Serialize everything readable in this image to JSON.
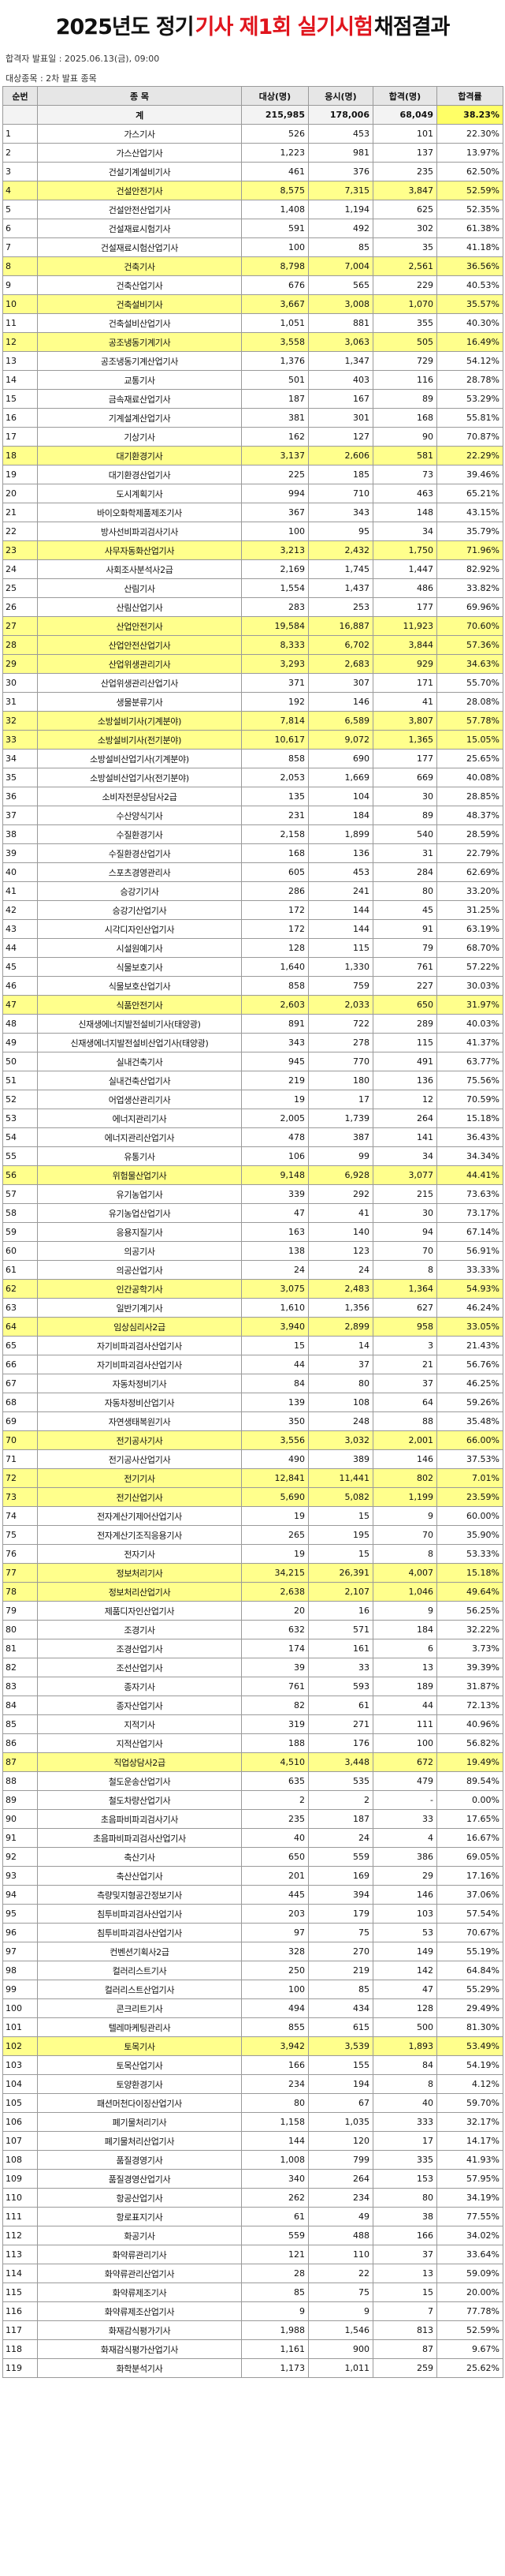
{
  "title": {
    "pre": "2025년도 정기",
    "highlight": "기사 제1회 실기시험",
    "post": "채점결과"
  },
  "meta": {
    "announce": "합격자 발표일 : 2025.06.13(금), 09:00",
    "target": "대상종목 : 2차 발표 종목"
  },
  "colors": {
    "highlight_row": "#ffff8c",
    "title_red": "#e0151d",
    "header_bg": "#e6e6e6"
  },
  "headers": [
    "순번",
    "종 목",
    "대상(명)",
    "응시(명)",
    "합격(명)",
    "합격률"
  ],
  "total": {
    "no": "",
    "name": "계",
    "target": "215,985",
    "applied": "178,006",
    "passed": "68,049",
    "rate": "38.23%"
  },
  "rows": [
    [
      "1",
      "가스기사",
      "526",
      "453",
      "101",
      "22.30%",
      0
    ],
    [
      "2",
      "가스산업기사",
      "1,223",
      "981",
      "137",
      "13.97%",
      0
    ],
    [
      "3",
      "건설기계설비기사",
      "461",
      "376",
      "235",
      "62.50%",
      0
    ],
    [
      "4",
      "건설안전기사",
      "8,575",
      "7,315",
      "3,847",
      "52.59%",
      1
    ],
    [
      "5",
      "건설안전산업기사",
      "1,408",
      "1,194",
      "625",
      "52.35%",
      0
    ],
    [
      "6",
      "건설재료시험기사",
      "591",
      "492",
      "302",
      "61.38%",
      0
    ],
    [
      "7",
      "건설재료시험산업기사",
      "100",
      "85",
      "35",
      "41.18%",
      0
    ],
    [
      "8",
      "건축기사",
      "8,798",
      "7,004",
      "2,561",
      "36.56%",
      1
    ],
    [
      "9",
      "건축산업기사",
      "676",
      "565",
      "229",
      "40.53%",
      0
    ],
    [
      "10",
      "건축설비기사",
      "3,667",
      "3,008",
      "1,070",
      "35.57%",
      1
    ],
    [
      "11",
      "건축설비산업기사",
      "1,051",
      "881",
      "355",
      "40.30%",
      0
    ],
    [
      "12",
      "공조냉동기계기사",
      "3,558",
      "3,063",
      "505",
      "16.49%",
      1
    ],
    [
      "13",
      "공조냉동기계산업기사",
      "1,376",
      "1,347",
      "729",
      "54.12%",
      0
    ],
    [
      "14",
      "교통기사",
      "501",
      "403",
      "116",
      "28.78%",
      0
    ],
    [
      "15",
      "금속재료산업기사",
      "187",
      "167",
      "89",
      "53.29%",
      0
    ],
    [
      "16",
      "기계설계산업기사",
      "381",
      "301",
      "168",
      "55.81%",
      0
    ],
    [
      "17",
      "기상기사",
      "162",
      "127",
      "90",
      "70.87%",
      0
    ],
    [
      "18",
      "대기환경기사",
      "3,137",
      "2,606",
      "581",
      "22.29%",
      1
    ],
    [
      "19",
      "대기환경산업기사",
      "225",
      "185",
      "73",
      "39.46%",
      0
    ],
    [
      "20",
      "도시계획기사",
      "994",
      "710",
      "463",
      "65.21%",
      0
    ],
    [
      "21",
      "바이오화학제품제조기사",
      "367",
      "343",
      "148",
      "43.15%",
      0
    ],
    [
      "22",
      "방사선비파괴검사기사",
      "100",
      "95",
      "34",
      "35.79%",
      0
    ],
    [
      "23",
      "사무자동화산업기사",
      "3,213",
      "2,432",
      "1,750",
      "71.96%",
      1
    ],
    [
      "24",
      "사회조사분석사2급",
      "2,169",
      "1,745",
      "1,447",
      "82.92%",
      0
    ],
    [
      "25",
      "산림기사",
      "1,554",
      "1,437",
      "486",
      "33.82%",
      0
    ],
    [
      "26",
      "산림산업기사",
      "283",
      "253",
      "177",
      "69.96%",
      0
    ],
    [
      "27",
      "산업안전기사",
      "19,584",
      "16,887",
      "11,923",
      "70.60%",
      1
    ],
    [
      "28",
      "산업안전산업기사",
      "8,333",
      "6,702",
      "3,844",
      "57.36%",
      1
    ],
    [
      "29",
      "산업위생관리기사",
      "3,293",
      "2,683",
      "929",
      "34.63%",
      1
    ],
    [
      "30",
      "산업위생관리산업기사",
      "371",
      "307",
      "171",
      "55.70%",
      0
    ],
    [
      "31",
      "생물분류기사",
      "192",
      "146",
      "41",
      "28.08%",
      0
    ],
    [
      "32",
      "소방설비기사(기계분야)",
      "7,814",
      "6,589",
      "3,807",
      "57.78%",
      1
    ],
    [
      "33",
      "소방설비기사(전기분야)",
      "10,617",
      "9,072",
      "1,365",
      "15.05%",
      1
    ],
    [
      "34",
      "소방설비산업기사(기계분야)",
      "858",
      "690",
      "177",
      "25.65%",
      0
    ],
    [
      "35",
      "소방설비산업기사(전기분야)",
      "2,053",
      "1,669",
      "669",
      "40.08%",
      0
    ],
    [
      "36",
      "소비자전문상담사2급",
      "135",
      "104",
      "30",
      "28.85%",
      0
    ],
    [
      "37",
      "수산양식기사",
      "231",
      "184",
      "89",
      "48.37%",
      0
    ],
    [
      "38",
      "수질환경기사",
      "2,158",
      "1,899",
      "540",
      "28.59%",
      0
    ],
    [
      "39",
      "수질환경산업기사",
      "168",
      "136",
      "31",
      "22.79%",
      0
    ],
    [
      "40",
      "스포츠경영관리사",
      "605",
      "453",
      "284",
      "62.69%",
      0
    ],
    [
      "41",
      "승강기기사",
      "286",
      "241",
      "80",
      "33.20%",
      0
    ],
    [
      "42",
      "승강기산업기사",
      "172",
      "144",
      "45",
      "31.25%",
      0
    ],
    [
      "43",
      "시각디자인산업기사",
      "172",
      "144",
      "91",
      "63.19%",
      0
    ],
    [
      "44",
      "시설원예기사",
      "128",
      "115",
      "79",
      "68.70%",
      0
    ],
    [
      "45",
      "식물보호기사",
      "1,640",
      "1,330",
      "761",
      "57.22%",
      0
    ],
    [
      "46",
      "식물보호산업기사",
      "858",
      "759",
      "227",
      "30.03%",
      0
    ],
    [
      "47",
      "식품안전기사",
      "2,603",
      "2,033",
      "650",
      "31.97%",
      1
    ],
    [
      "48",
      "신재생에너지발전설비기사(태양광)",
      "891",
      "722",
      "289",
      "40.03%",
      0
    ],
    [
      "49",
      "신재생에너지발전설비산업기사(태양광)",
      "343",
      "278",
      "115",
      "41.37%",
      0
    ],
    [
      "50",
      "실내건축기사",
      "945",
      "770",
      "491",
      "63.77%",
      0
    ],
    [
      "51",
      "실내건축산업기사",
      "219",
      "180",
      "136",
      "75.56%",
      0
    ],
    [
      "52",
      "어업생산관리기사",
      "19",
      "17",
      "12",
      "70.59%",
      0
    ],
    [
      "53",
      "에너지관리기사",
      "2,005",
      "1,739",
      "264",
      "15.18%",
      0
    ],
    [
      "54",
      "에너지관리산업기사",
      "478",
      "387",
      "141",
      "36.43%",
      0
    ],
    [
      "55",
      "유통기사",
      "106",
      "99",
      "34",
      "34.34%",
      0
    ],
    [
      "56",
      "위험물산업기사",
      "9,148",
      "6,928",
      "3,077",
      "44.41%",
      1
    ],
    [
      "57",
      "유기농업기사",
      "339",
      "292",
      "215",
      "73.63%",
      0
    ],
    [
      "58",
      "유기농업산업기사",
      "47",
      "41",
      "30",
      "73.17%",
      0
    ],
    [
      "59",
      "응용지질기사",
      "163",
      "140",
      "94",
      "67.14%",
      0
    ],
    [
      "60",
      "의공기사",
      "138",
      "123",
      "70",
      "56.91%",
      0
    ],
    [
      "61",
      "의공산업기사",
      "24",
      "24",
      "8",
      "33.33%",
      0
    ],
    [
      "62",
      "인간공학기사",
      "3,075",
      "2,483",
      "1,364",
      "54.93%",
      1
    ],
    [
      "63",
      "일반기계기사",
      "1,610",
      "1,356",
      "627",
      "46.24%",
      0
    ],
    [
      "64",
      "임상심리사2급",
      "3,940",
      "2,899",
      "958",
      "33.05%",
      1
    ],
    [
      "65",
      "자기비파괴검사산업기사",
      "15",
      "14",
      "3",
      "21.43%",
      0
    ],
    [
      "66",
      "자기비파괴검사산업기사",
      "44",
      "37",
      "21",
      "56.76%",
      0
    ],
    [
      "67",
      "자동차정비기사",
      "84",
      "80",
      "37",
      "46.25%",
      0
    ],
    [
      "68",
      "자동차정비산업기사",
      "139",
      "108",
      "64",
      "59.26%",
      0
    ],
    [
      "69",
      "자연생태복원기사",
      "350",
      "248",
      "88",
      "35.48%",
      0
    ],
    [
      "70",
      "전기공사기사",
      "3,556",
      "3,032",
      "2,001",
      "66.00%",
      1
    ],
    [
      "71",
      "전기공사산업기사",
      "490",
      "389",
      "146",
      "37.53%",
      0
    ],
    [
      "72",
      "전기기사",
      "12,841",
      "11,441",
      "802",
      "7.01%",
      1
    ],
    [
      "73",
      "전기산업기사",
      "5,690",
      "5,082",
      "1,199",
      "23.59%",
      1
    ],
    [
      "74",
      "전자계산기제어산업기사",
      "19",
      "15",
      "9",
      "60.00%",
      0
    ],
    [
      "75",
      "전자계산기조직응용기사",
      "265",
      "195",
      "70",
      "35.90%",
      0
    ],
    [
      "76",
      "전자기사",
      "19",
      "15",
      "8",
      "53.33%",
      0
    ],
    [
      "77",
      "정보처리기사",
      "34,215",
      "26,391",
      "4,007",
      "15.18%",
      1
    ],
    [
      "78",
      "정보처리산업기사",
      "2,638",
      "2,107",
      "1,046",
      "49.64%",
      1
    ],
    [
      "79",
      "제품디자인산업기사",
      "20",
      "16",
      "9",
      "56.25%",
      0
    ],
    [
      "80",
      "조경기사",
      "632",
      "571",
      "184",
      "32.22%",
      0
    ],
    [
      "81",
      "조경산업기사",
      "174",
      "161",
      "6",
      "3.73%",
      0
    ],
    [
      "82",
      "조선산업기사",
      "39",
      "33",
      "13",
      "39.39%",
      0
    ],
    [
      "83",
      "종자기사",
      "761",
      "593",
      "189",
      "31.87%",
      0
    ],
    [
      "84",
      "종자산업기사",
      "82",
      "61",
      "44",
      "72.13%",
      0
    ],
    [
      "85",
      "지적기사",
      "319",
      "271",
      "111",
      "40.96%",
      0
    ],
    [
      "86",
      "지적산업기사",
      "188",
      "176",
      "100",
      "56.82%",
      0
    ],
    [
      "87",
      "직업상담사2급",
      "4,510",
      "3,448",
      "672",
      "19.49%",
      1
    ],
    [
      "88",
      "철도운송산업기사",
      "635",
      "535",
      "479",
      "89.54%",
      0
    ],
    [
      "89",
      "철도차량산업기사",
      "2",
      "2",
      "-",
      "0.00%",
      0
    ],
    [
      "90",
      "초음파비파괴검사기사",
      "235",
      "187",
      "33",
      "17.65%",
      0
    ],
    [
      "91",
      "초음파비파괴검사산업기사",
      "40",
      "24",
      "4",
      "16.67%",
      0
    ],
    [
      "92",
      "축산기사",
      "650",
      "559",
      "386",
      "69.05%",
      0
    ],
    [
      "93",
      "축산산업기사",
      "201",
      "169",
      "29",
      "17.16%",
      0
    ],
    [
      "94",
      "측량및지형공간정보기사",
      "445",
      "394",
      "146",
      "37.06%",
      0
    ],
    [
      "95",
      "침투비파괴검사산업기사",
      "203",
      "179",
      "103",
      "57.54%",
      0
    ],
    [
      "96",
      "침투비파괴검사산업기사",
      "97",
      "75",
      "53",
      "70.67%",
      0
    ],
    [
      "97",
      "컨벤션기획사2급",
      "328",
      "270",
      "149",
      "55.19%",
      0
    ],
    [
      "98",
      "컬러리스트기사",
      "250",
      "219",
      "142",
      "64.84%",
      0
    ],
    [
      "99",
      "컬러리스트산업기사",
      "100",
      "85",
      "47",
      "55.29%",
      0
    ],
    [
      "100",
      "콘크리트기사",
      "494",
      "434",
      "128",
      "29.49%",
      0
    ],
    [
      "101",
      "텔레마케팅관리사",
      "855",
      "615",
      "500",
      "81.30%",
      0
    ],
    [
      "102",
      "토목기사",
      "3,942",
      "3,539",
      "1,893",
      "53.49%",
      1
    ],
    [
      "103",
      "토목산업기사",
      "166",
      "155",
      "84",
      "54.19%",
      0
    ],
    [
      "104",
      "토양환경기사",
      "234",
      "194",
      "8",
      "4.12%",
      0
    ],
    [
      "105",
      "패션머천다이징산업기사",
      "80",
      "67",
      "40",
      "59.70%",
      0
    ],
    [
      "106",
      "폐기물처리기사",
      "1,158",
      "1,035",
      "333",
      "32.17%",
      0
    ],
    [
      "107",
      "폐기물처리산업기사",
      "144",
      "120",
      "17",
      "14.17%",
      0
    ],
    [
      "108",
      "품질경영기사",
      "1,008",
      "799",
      "335",
      "41.93%",
      0
    ],
    [
      "109",
      "품질경영산업기사",
      "340",
      "264",
      "153",
      "57.95%",
      0
    ],
    [
      "110",
      "항공산업기사",
      "262",
      "234",
      "80",
      "34.19%",
      0
    ],
    [
      "111",
      "항로표지기사",
      "61",
      "49",
      "38",
      "77.55%",
      0
    ],
    [
      "112",
      "화공기사",
      "559",
      "488",
      "166",
      "34.02%",
      0
    ],
    [
      "113",
      "화약류관리기사",
      "121",
      "110",
      "37",
      "33.64%",
      0
    ],
    [
      "114",
      "화약류관리산업기사",
      "28",
      "22",
      "13",
      "59.09%",
      0
    ],
    [
      "115",
      "화약류제조기사",
      "85",
      "75",
      "15",
      "20.00%",
      0
    ],
    [
      "116",
      "화약류제조산업기사",
      "9",
      "9",
      "7",
      "77.78%",
      0
    ],
    [
      "117",
      "화재감식평가기사",
      "1,988",
      "1,546",
      "813",
      "52.59%",
      0
    ],
    [
      "118",
      "화재감식평가산업기사",
      "1,161",
      "900",
      "87",
      "9.67%",
      0
    ],
    [
      "119",
      "화학분석기사",
      "1,173",
      "1,011",
      "259",
      "25.62%",
      0
    ]
  ]
}
